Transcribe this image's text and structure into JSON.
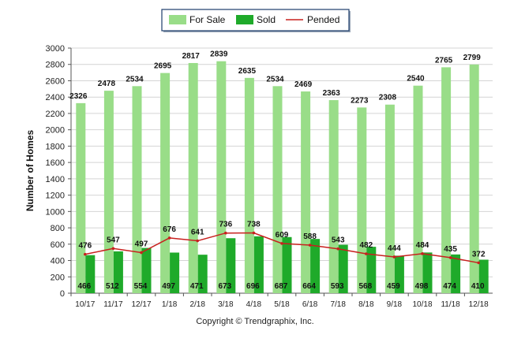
{
  "chart_data": {
    "type": "bar",
    "categories": [
      "10/17",
      "11/17",
      "12/17",
      "1/18",
      "2/18",
      "3/18",
      "4/18",
      "5/18",
      "6/18",
      "7/18",
      "8/18",
      "9/18",
      "10/18",
      "11/18",
      "12/18"
    ],
    "series": [
      {
        "name": "For Sale",
        "kind": "bar",
        "color": "#99dd88",
        "values": [
          2326,
          2478,
          2534,
          2695,
          2817,
          2839,
          2635,
          2534,
          2469,
          2363,
          2273,
          2308,
          2540,
          2765,
          2799
        ]
      },
      {
        "name": "Sold",
        "kind": "bar",
        "color": "#1faa2a",
        "values": [
          466,
          512,
          554,
          497,
          471,
          673,
          696,
          687,
          664,
          593,
          568,
          459,
          498,
          474,
          410
        ]
      },
      {
        "name": "Pended",
        "kind": "line",
        "color": "#c8201e",
        "values": [
          476,
          547,
          497,
          676,
          641,
          736,
          738,
          609,
          588,
          543,
          482,
          444,
          484,
          435,
          372
        ]
      }
    ],
    "xlabel": "",
    "ylabel": "Number of Homes",
    "ylim": [
      0,
      3000
    ],
    "yticks": [
      0,
      200,
      400,
      600,
      800,
      1000,
      1200,
      1400,
      1600,
      1800,
      2000,
      2200,
      2400,
      2600,
      2800,
      3000
    ],
    "grid": true,
    "legend_position": "top-center"
  },
  "footer": {
    "copyright": "Copyright © Trendgraphix, Inc."
  }
}
